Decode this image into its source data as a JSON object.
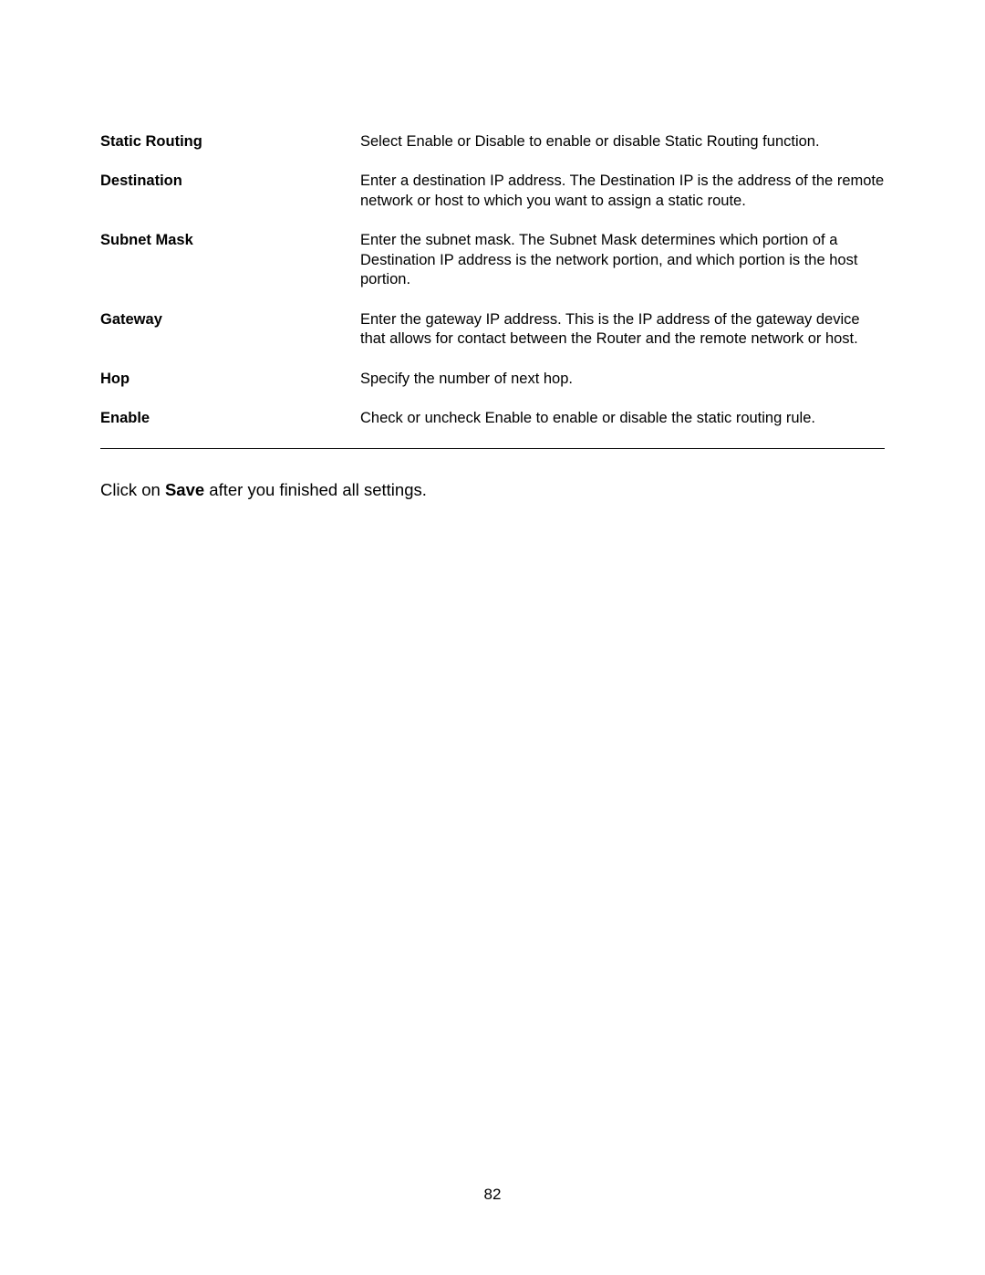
{
  "definitions": [
    {
      "term": "Static Routing",
      "description": "Select Enable or Disable to enable or disable Static Routing function."
    },
    {
      "term": "Destination",
      "description": "Enter a destination IP address. The Destination IP is the address of the remote network or host to which you want to assign a static route."
    },
    {
      "term": "Subnet Mask",
      "description": "Enter the subnet mask. The Subnet Mask determines which portion of a Destination IP address is the network portion, and which portion is the host portion."
    },
    {
      "term": "Gateway",
      "description": "Enter the gateway IP address. This is the IP address of the gateway device that allows for contact between the Router and the remote network or host."
    },
    {
      "term": "Hop",
      "description": "Specify the number of next hop."
    },
    {
      "term": "Enable",
      "description": "Check or uncheck Enable to enable or disable the static routing rule."
    }
  ],
  "footer": {
    "prefix": "Click on ",
    "bold": "Save",
    "suffix": " after you finished all settings."
  },
  "page_number": "82"
}
